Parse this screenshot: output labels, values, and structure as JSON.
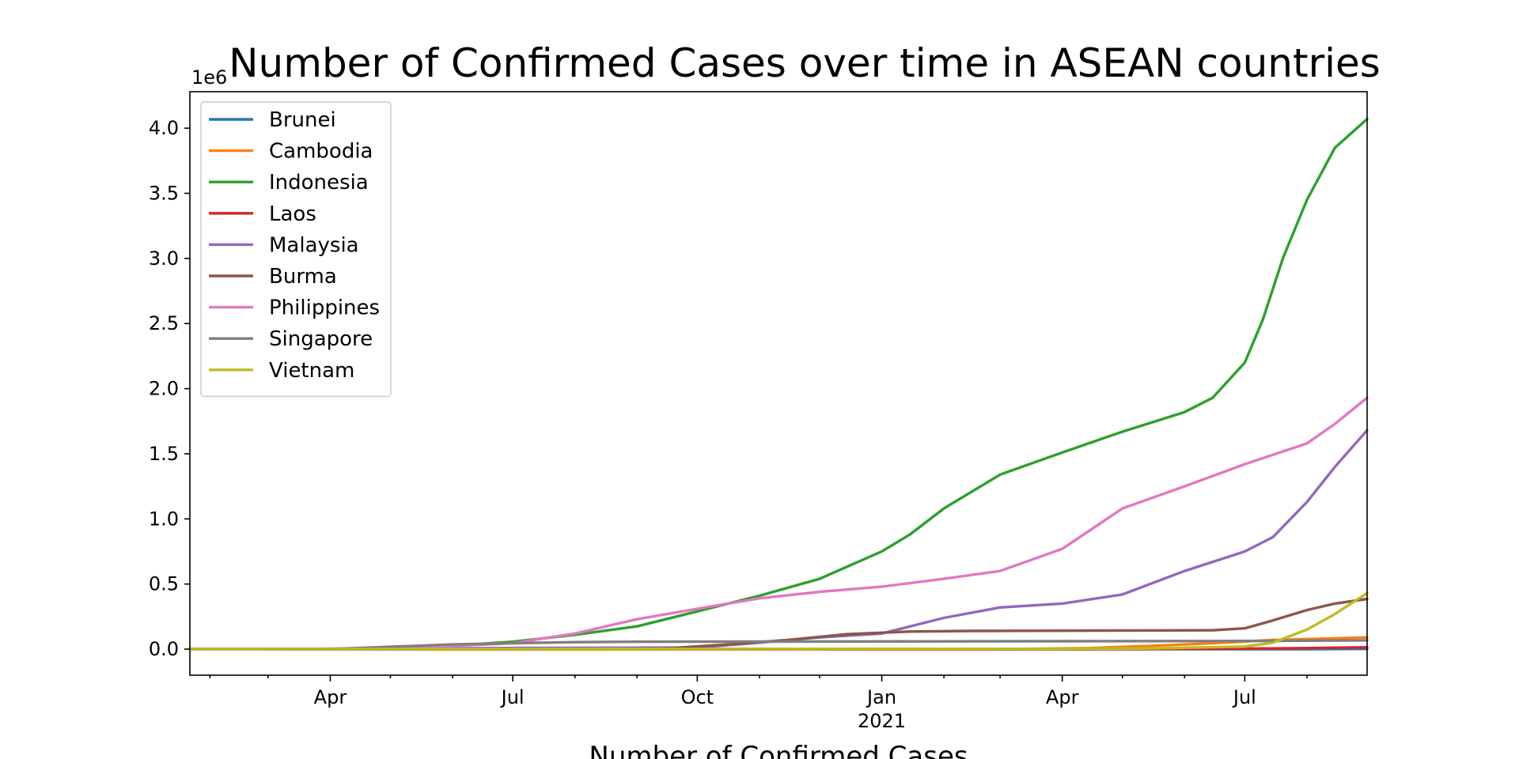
{
  "chart_data": {
    "type": "line",
    "title": "Number of Confirmed Cases over time in ASEAN countries",
    "xlabel": "Number of Confirmed Cases",
    "ylabel": "",
    "y_offset_text": "1e6",
    "ylim": [
      -0.2,
      4.28
    ],
    "yticks": [
      0.0,
      0.5,
      1.0,
      1.5,
      2.0,
      2.5,
      3.0,
      3.5,
      4.0
    ],
    "ytick_labels": [
      "0.0",
      "0.5",
      "1.0",
      "1.5",
      "2.0",
      "2.5",
      "3.0",
      "3.5",
      "4.0"
    ],
    "xlim": [
      "2020-01-22",
      "2021-08-31"
    ],
    "xticks_major": [
      {
        "date": "2020-04-01",
        "label": "Apr"
      },
      {
        "date": "2020-07-01",
        "label": "Jul"
      },
      {
        "date": "2020-10-01",
        "label": "Oct"
      },
      {
        "date": "2021-01-01",
        "label": "Jan"
      },
      {
        "date": "2021-04-01",
        "label": "Apr"
      },
      {
        "date": "2021-07-01",
        "label": "Jul"
      }
    ],
    "xtick_year_label": {
      "date": "2021-01-01",
      "label": "2021"
    },
    "xticks_minor": [
      "2020-02-01",
      "2020-03-01",
      "2020-05-01",
      "2020-06-01",
      "2020-08-01",
      "2020-09-01",
      "2020-11-01",
      "2020-12-01",
      "2021-02-01",
      "2021-03-01",
      "2021-05-01",
      "2021-06-01",
      "2021-08-01"
    ],
    "legend_position": "upper-left",
    "series": [
      {
        "name": "Brunei",
        "color": "#1f77b4",
        "points": [
          [
            "2020-01-22",
            0
          ],
          [
            "2020-03-10",
            0
          ],
          [
            "2020-04-15",
            0.0001
          ],
          [
            "2021-08-01",
            0.0003
          ],
          [
            "2021-08-31",
            0.0024
          ]
        ]
      },
      {
        "name": "Cambodia",
        "color": "#ff7f0e",
        "points": [
          [
            "2020-01-22",
            0
          ],
          [
            "2021-02-15",
            0.0005
          ],
          [
            "2021-03-15",
            0.002
          ],
          [
            "2021-04-15",
            0.008
          ],
          [
            "2021-05-15",
            0.025
          ],
          [
            "2021-06-15",
            0.045
          ],
          [
            "2021-07-15",
            0.07
          ],
          [
            "2021-08-31",
            0.09
          ]
        ]
      },
      {
        "name": "Indonesia",
        "color": "#2ca02c",
        "points": [
          [
            "2020-01-22",
            0
          ],
          [
            "2020-03-01",
            0
          ],
          [
            "2020-04-01",
            0.0015
          ],
          [
            "2020-05-01",
            0.01
          ],
          [
            "2020-06-01",
            0.026
          ],
          [
            "2020-07-01",
            0.057
          ],
          [
            "2020-08-01",
            0.11
          ],
          [
            "2020-09-01",
            0.175
          ],
          [
            "2020-10-01",
            0.29
          ],
          [
            "2020-11-01",
            0.41
          ],
          [
            "2020-12-01",
            0.54
          ],
          [
            "2021-01-01",
            0.75
          ],
          [
            "2021-01-15",
            0.88
          ],
          [
            "2021-02-01",
            1.08
          ],
          [
            "2021-03-01",
            1.34
          ],
          [
            "2021-04-01",
            1.51
          ],
          [
            "2021-05-01",
            1.67
          ],
          [
            "2021-06-01",
            1.82
          ],
          [
            "2021-06-15",
            1.93
          ],
          [
            "2021-07-01",
            2.2
          ],
          [
            "2021-07-10",
            2.53
          ],
          [
            "2021-07-20",
            3.0
          ],
          [
            "2021-08-01",
            3.45
          ],
          [
            "2021-08-15",
            3.85
          ],
          [
            "2021-08-31",
            4.07
          ]
        ]
      },
      {
        "name": "Laos",
        "color": "#d62728",
        "points": [
          [
            "2020-01-22",
            0
          ],
          [
            "2021-04-15",
            0.0005
          ],
          [
            "2021-06-01",
            0.002
          ],
          [
            "2021-07-15",
            0.005
          ],
          [
            "2021-08-31",
            0.014
          ]
        ]
      },
      {
        "name": "Malaysia",
        "color": "#9467bd",
        "points": [
          [
            "2020-01-22",
            0
          ],
          [
            "2020-03-01",
            0
          ],
          [
            "2020-04-01",
            0.003
          ],
          [
            "2020-07-01",
            0.0087
          ],
          [
            "2020-10-01",
            0.012
          ],
          [
            "2020-11-01",
            0.05
          ],
          [
            "2020-12-01",
            0.09
          ],
          [
            "2021-01-01",
            0.12
          ],
          [
            "2021-02-01",
            0.24
          ],
          [
            "2021-03-01",
            0.32
          ],
          [
            "2021-04-01",
            0.35
          ],
          [
            "2021-05-01",
            0.42
          ],
          [
            "2021-06-01",
            0.6
          ],
          [
            "2021-07-01",
            0.75
          ],
          [
            "2021-07-15",
            0.86
          ],
          [
            "2021-08-01",
            1.13
          ],
          [
            "2021-08-15",
            1.4
          ],
          [
            "2021-08-31",
            1.68
          ]
        ]
      },
      {
        "name": "Burma",
        "color": "#8c564b",
        "points": [
          [
            "2020-01-22",
            0
          ],
          [
            "2020-08-15",
            0.0005
          ],
          [
            "2020-09-15",
            0.005
          ],
          [
            "2020-10-15",
            0.035
          ],
          [
            "2020-11-15",
            0.07
          ],
          [
            "2020-12-15",
            0.115
          ],
          [
            "2021-01-15",
            0.135
          ],
          [
            "2021-02-15",
            0.14
          ],
          [
            "2021-06-15",
            0.145
          ],
          [
            "2021-07-01",
            0.16
          ],
          [
            "2021-07-15",
            0.22
          ],
          [
            "2021-08-01",
            0.3
          ],
          [
            "2021-08-15",
            0.35
          ],
          [
            "2021-08-31",
            0.385
          ]
        ]
      },
      {
        "name": "Philippines",
        "color": "#e377c2",
        "points": [
          [
            "2020-01-22",
            0
          ],
          [
            "2020-03-01",
            0
          ],
          [
            "2020-04-01",
            0.0025
          ],
          [
            "2020-05-01",
            0.01
          ],
          [
            "2020-06-01",
            0.025
          ],
          [
            "2020-07-01",
            0.045
          ],
          [
            "2020-08-01",
            0.12
          ],
          [
            "2020-09-01",
            0.23
          ],
          [
            "2020-10-01",
            0.31
          ],
          [
            "2020-11-01",
            0.39
          ],
          [
            "2020-12-01",
            0.44
          ],
          [
            "2021-01-01",
            0.48
          ],
          [
            "2021-02-01",
            0.54
          ],
          [
            "2021-03-01",
            0.6
          ],
          [
            "2021-04-01",
            0.77
          ],
          [
            "2021-05-01",
            1.08
          ],
          [
            "2021-06-01",
            1.25
          ],
          [
            "2021-07-01",
            1.42
          ],
          [
            "2021-08-01",
            1.58
          ],
          [
            "2021-08-15",
            1.73
          ],
          [
            "2021-08-31",
            1.93
          ]
        ]
      },
      {
        "name": "Singapore",
        "color": "#7f7f7f",
        "points": [
          [
            "2020-01-22",
            0
          ],
          [
            "2020-03-01",
            0.0001
          ],
          [
            "2020-04-01",
            0.001
          ],
          [
            "2020-05-01",
            0.018
          ],
          [
            "2020-06-01",
            0.036
          ],
          [
            "2020-07-01",
            0.045
          ],
          [
            "2020-08-01",
            0.054
          ],
          [
            "2020-09-01",
            0.057
          ],
          [
            "2021-01-01",
            0.059
          ],
          [
            "2021-04-01",
            0.061
          ],
          [
            "2021-07-01",
            0.063
          ],
          [
            "2021-08-31",
            0.068
          ]
        ]
      },
      {
        "name": "Vietnam",
        "color": "#bcbd22",
        "points": [
          [
            "2020-01-22",
            0
          ],
          [
            "2021-04-15",
            0.003
          ],
          [
            "2021-05-15",
            0.005
          ],
          [
            "2021-06-15",
            0.015
          ],
          [
            "2021-07-01",
            0.02
          ],
          [
            "2021-07-15",
            0.05
          ],
          [
            "2021-08-01",
            0.15
          ],
          [
            "2021-08-15",
            0.27
          ],
          [
            "2021-08-31",
            0.43
          ]
        ]
      }
    ]
  }
}
